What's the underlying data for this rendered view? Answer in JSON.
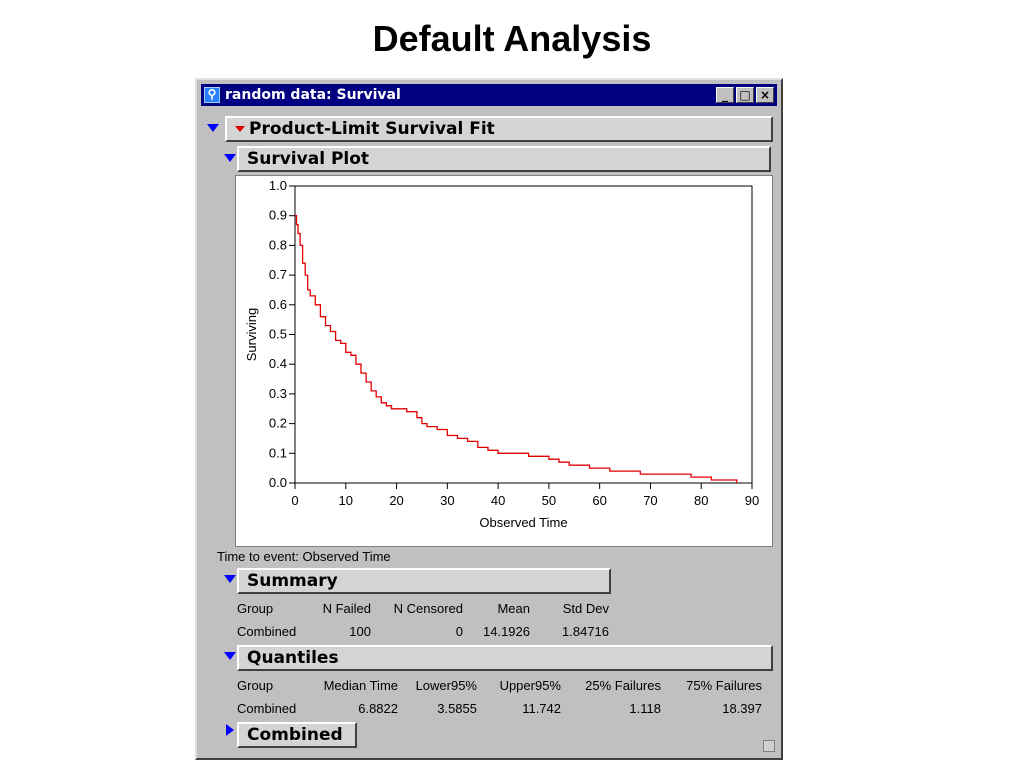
{
  "slide": {
    "title": "Default Analysis"
  },
  "window": {
    "title": "random data: Survival",
    "controls": {
      "minimize": "_",
      "maximize": "□",
      "close": "×"
    }
  },
  "sections": {
    "product_limit": "Product-Limit Survival Fit",
    "survival_plot": "Survival Plot",
    "summary": "Summary",
    "quantiles": "Quantiles",
    "combined": "Combined"
  },
  "time_to_event": "Time to event: Observed Time",
  "summary_table": {
    "headers": [
      "Group",
      "N Failed",
      "N Censored",
      "Mean",
      "Std Dev"
    ],
    "row": [
      "Combined",
      "100",
      "0",
      "14.1926",
      "1.84716"
    ]
  },
  "quantiles_table": {
    "headers": [
      "Group",
      "Median Time",
      "Lower95%",
      "Upper95%",
      "25% Failures",
      "75% Failures"
    ],
    "row": [
      "Combined",
      "6.8822",
      "3.5855",
      "11.742",
      "1.118",
      "18.397"
    ]
  },
  "colors": {
    "curve": "#e00000",
    "disclosure": "#0000ff",
    "titlebar": "#000080"
  },
  "chart_data": {
    "type": "line",
    "xlabel": "Observed Time",
    "ylabel": "Surviving",
    "xlim": [
      0,
      90
    ],
    "ylim": [
      0,
      1.0
    ],
    "xticks": [
      "0",
      "10",
      "20",
      "30",
      "40",
      "50",
      "60",
      "70",
      "80",
      "90"
    ],
    "yticks": [
      "0.0",
      "0.1",
      "0.2",
      "0.3",
      "0.4",
      "0.5",
      "0.6",
      "0.7",
      "0.8",
      "0.9",
      "1.0"
    ],
    "step": true,
    "series": [
      {
        "x": [
          0,
          0.3,
          0.6,
          1.0,
          1.5,
          2.0,
          2.5,
          3.0,
          4.0,
          5.0,
          6.0,
          7.0,
          8.0,
          9.0,
          10.0,
          11.0,
          12.0,
          13.0,
          14.0,
          15.0,
          16.0,
          17.0,
          18.0,
          19.0,
          20.0,
          22.0,
          24.0,
          25.0,
          26.0,
          28.0,
          30.0,
          32.0,
          34.0,
          36.0,
          38.0,
          40.0,
          42.0,
          44.0,
          46.0,
          48.0,
          50.0,
          52.0,
          54.0,
          56.0,
          58.0,
          60.0,
          62.0,
          64.0,
          66.0,
          68.0,
          70.0,
          72.0,
          74.0,
          76.0,
          78.0,
          80.0,
          82.0,
          84.0,
          86.0,
          87.0
        ],
        "y": [
          0.9,
          0.87,
          0.84,
          0.8,
          0.74,
          0.7,
          0.65,
          0.63,
          0.6,
          0.56,
          0.53,
          0.51,
          0.48,
          0.47,
          0.44,
          0.43,
          0.4,
          0.37,
          0.34,
          0.31,
          0.29,
          0.27,
          0.26,
          0.25,
          0.25,
          0.24,
          0.22,
          0.2,
          0.19,
          0.18,
          0.16,
          0.15,
          0.14,
          0.12,
          0.11,
          0.1,
          0.1,
          0.1,
          0.09,
          0.09,
          0.08,
          0.07,
          0.06,
          0.06,
          0.05,
          0.05,
          0.04,
          0.04,
          0.04,
          0.03,
          0.03,
          0.03,
          0.03,
          0.03,
          0.02,
          0.02,
          0.01,
          0.01,
          0.01,
          0.0
        ]
      }
    ]
  }
}
